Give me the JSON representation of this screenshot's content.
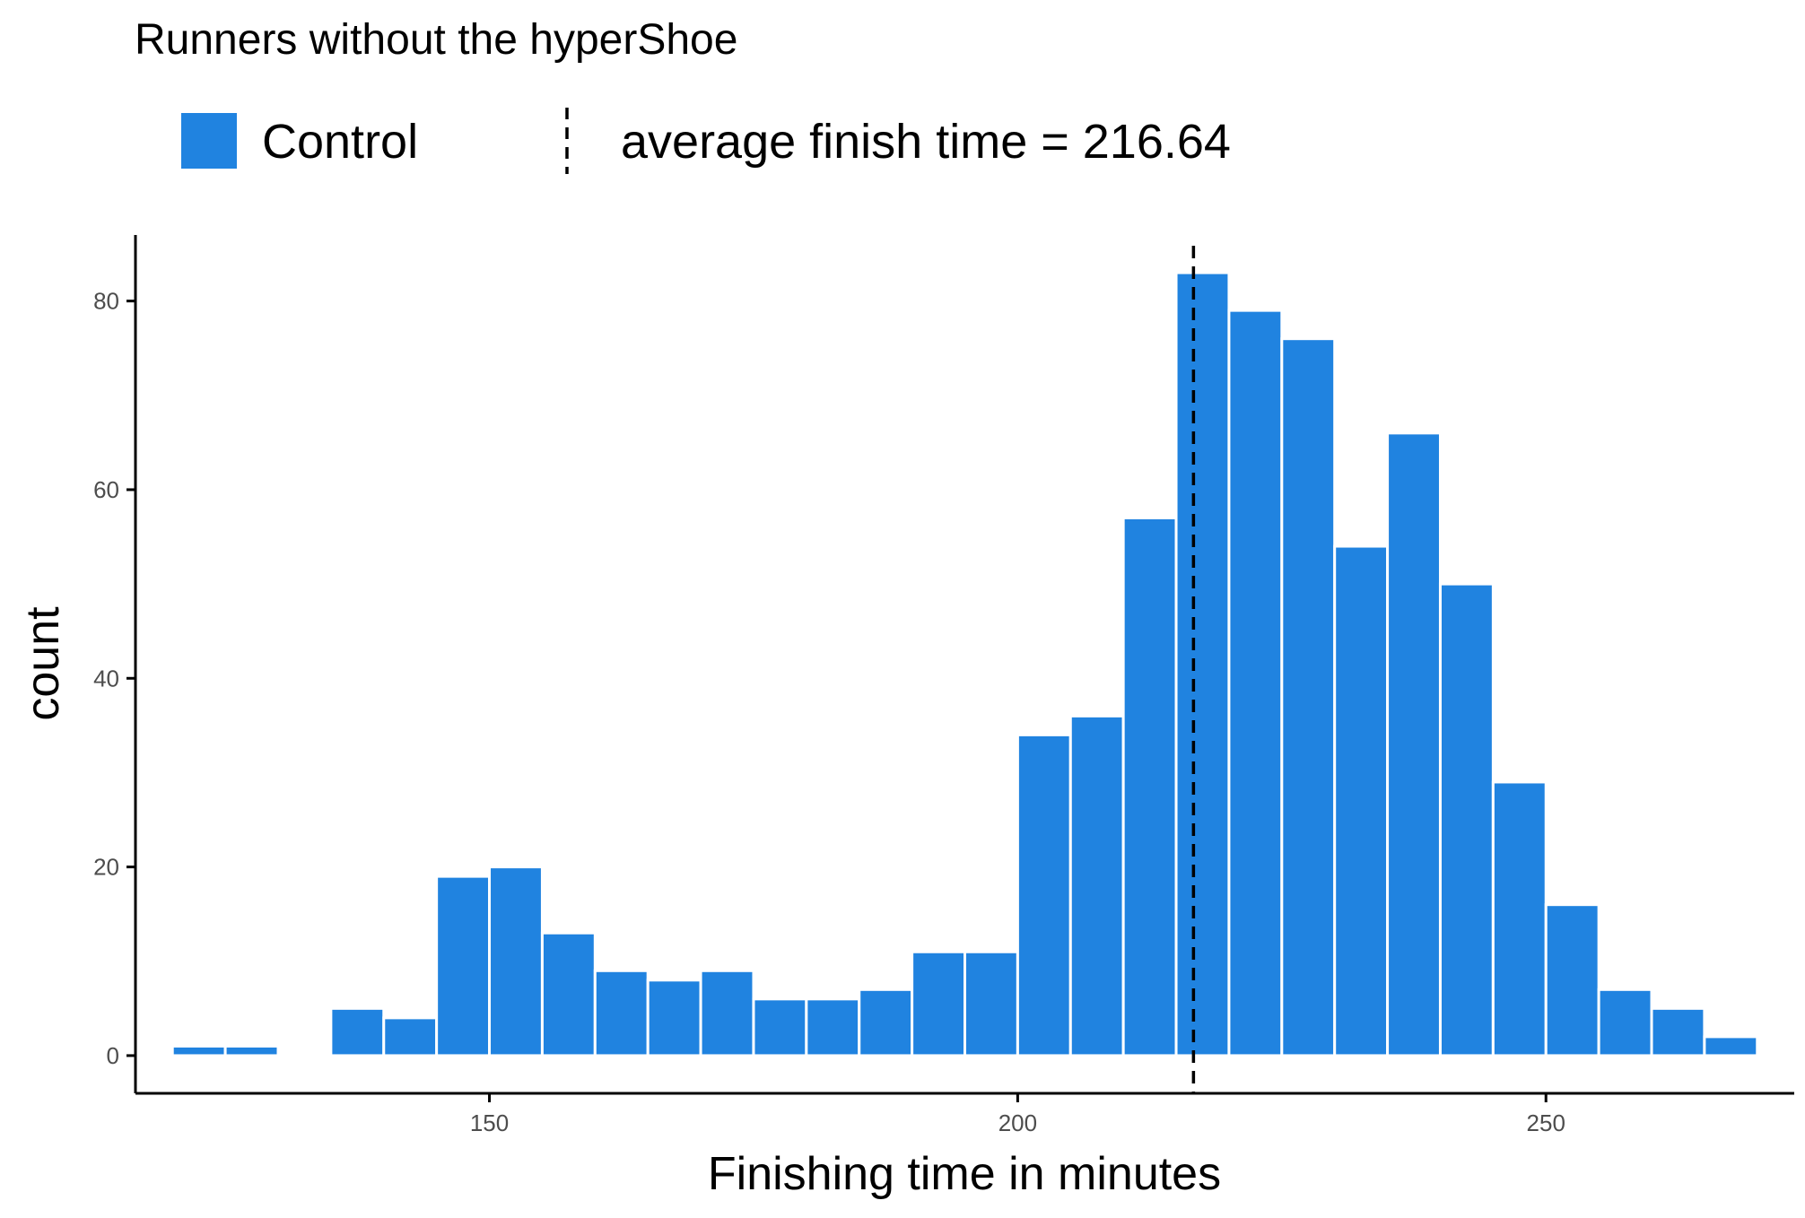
{
  "chart_data": {
    "type": "bar",
    "title": "Runners without the hyperShoe",
    "xlabel": "Finishing time in minutes",
    "ylabel": "count",
    "bin_width": 5,
    "bins": [
      {
        "x": 122.5,
        "count": 1
      },
      {
        "x": 127.5,
        "count": 1
      },
      {
        "x": 132.5,
        "count": 0
      },
      {
        "x": 137.5,
        "count": 5
      },
      {
        "x": 142.5,
        "count": 4
      },
      {
        "x": 147.5,
        "count": 19
      },
      {
        "x": 152.5,
        "count": 20
      },
      {
        "x": 157.5,
        "count": 13
      },
      {
        "x": 162.5,
        "count": 9
      },
      {
        "x": 167.5,
        "count": 8
      },
      {
        "x": 172.5,
        "count": 9
      },
      {
        "x": 177.5,
        "count": 6
      },
      {
        "x": 182.5,
        "count": 6
      },
      {
        "x": 187.5,
        "count": 7
      },
      {
        "x": 192.5,
        "count": 11
      },
      {
        "x": 197.5,
        "count": 11
      },
      {
        "x": 202.5,
        "count": 34
      },
      {
        "x": 207.5,
        "count": 36
      },
      {
        "x": 212.5,
        "count": 57
      },
      {
        "x": 217.5,
        "count": 83
      },
      {
        "x": 222.5,
        "count": 79
      },
      {
        "x": 227.5,
        "count": 76
      },
      {
        "x": 232.5,
        "count": 54
      },
      {
        "x": 237.5,
        "count": 66
      },
      {
        "x": 242.5,
        "count": 50
      },
      {
        "x": 247.5,
        "count": 29
      },
      {
        "x": 252.5,
        "count": 16
      },
      {
        "x": 257.5,
        "count": 7
      },
      {
        "x": 262.5,
        "count": 5
      },
      {
        "x": 267.5,
        "count": 2
      }
    ],
    "x_ticks": [
      150,
      200,
      250
    ],
    "y_ticks": [
      0,
      20,
      40,
      60,
      80
    ],
    "xlim": [
      116.5,
      273.5
    ],
    "ylim": [
      -4,
      87
    ],
    "mean_line": {
      "x": 216.64,
      "style": "dashed"
    },
    "grid": false,
    "legend_position": "top",
    "legend": {
      "fill_label": "Control",
      "line_label": "average finish time = 216.64"
    },
    "colors": {
      "bar_fill": "#2083E0",
      "bar_edge": "#FFFFFF",
      "line": "#000000",
      "axis": "#000000",
      "tick_text": "#4D4D4D"
    }
  }
}
